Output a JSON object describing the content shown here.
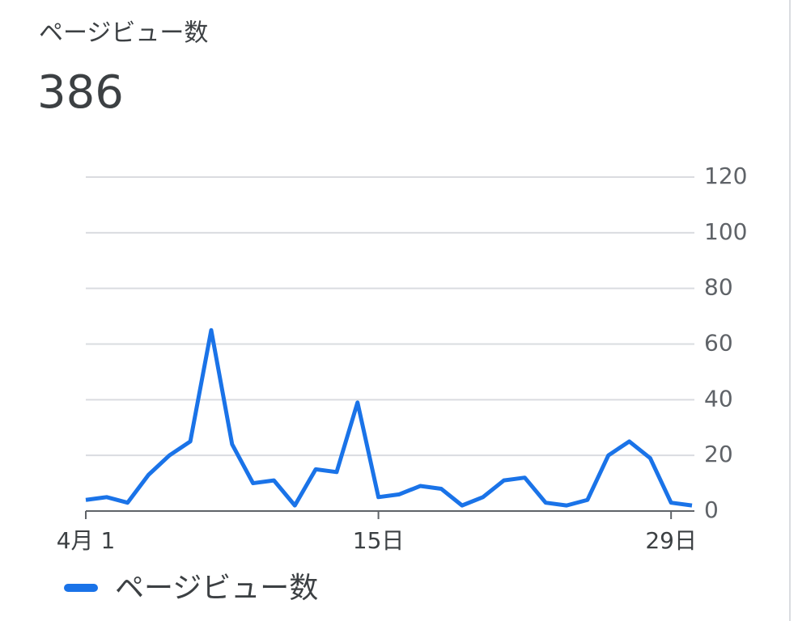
{
  "chart_data": {
    "type": "line",
    "title": "ページビュー数",
    "total": 386,
    "x": [
      1,
      2,
      3,
      4,
      5,
      6,
      7,
      8,
      9,
      10,
      11,
      12,
      13,
      14,
      15,
      16,
      17,
      18,
      19,
      20,
      21,
      22,
      23,
      24,
      25,
      26,
      27,
      28,
      29,
      30
    ],
    "series": [
      {
        "name": "ページビュー数",
        "color": "#1a73e8",
        "values": [
          4,
          5,
          3,
          13,
          20,
          25,
          65,
          24,
          10,
          11,
          2,
          15,
          14,
          39,
          5,
          6,
          9,
          8,
          2,
          5,
          11,
          12,
          3,
          2,
          4,
          20,
          25,
          19,
          3,
          2
        ]
      }
    ],
    "xlim": [
      1,
      30
    ],
    "xticks": [
      {
        "value": 1,
        "label": "4月 1"
      },
      {
        "value": 15,
        "label": "15日"
      },
      {
        "value": 29,
        "label": "29日"
      }
    ],
    "ylim": [
      0,
      120
    ],
    "yticks": [
      0,
      20,
      40,
      60,
      80,
      100,
      120
    ],
    "grid": true
  }
}
